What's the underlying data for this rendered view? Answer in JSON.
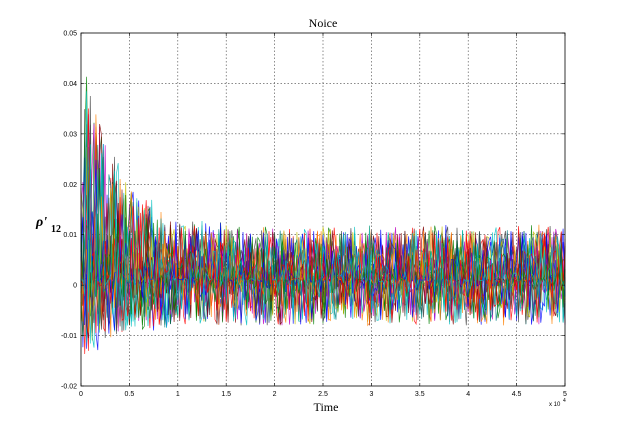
{
  "chart_data": {
    "type": "line",
    "title": "Noice",
    "xlabel": "Time",
    "ylabel": {
      "main": "ρ'",
      "sub": "12"
    },
    "x_exponent_label": "x 10",
    "x_exponent_power": "4",
    "xlim": [
      0,
      5
    ],
    "ylim": [
      -0.02,
      0.05
    ],
    "x_ticks": [
      0,
      0.5,
      1,
      1.5,
      2,
      2.5,
      3,
      3.5,
      4,
      4.5,
      5
    ],
    "x_tick_labels": [
      "0",
      "0.5",
      "1",
      "1.5",
      "2",
      "2.5",
      "3",
      "3.5",
      "4",
      "4.5",
      "5"
    ],
    "y_ticks": [
      -0.02,
      -0.01,
      0,
      0.01,
      0.02,
      0.03,
      0.04,
      0.05
    ],
    "y_tick_labels": [
      "-0.02",
      "-0.01",
      "0",
      "0.01",
      "0.02",
      "0.03",
      "0.04",
      "0.05"
    ],
    "grid": true,
    "series_colors": [
      "#0000ff",
      "#008000",
      "#ff0000",
      "#00bfbf",
      "#bf00bf",
      "#bfbf00",
      "#404040",
      "#800000",
      "#008080",
      "#ff8000"
    ],
    "envelope": {
      "description_points_x": [
        0,
        0.05,
        0.1,
        0.2,
        0.3,
        0.5,
        0.8,
        1,
        2,
        3,
        4,
        5
      ],
      "upper": [
        0.025,
        0.043,
        0.042,
        0.035,
        0.028,
        0.02,
        0.016,
        0.013,
        0.012,
        0.012,
        0.012,
        0.012
      ],
      "lower": [
        -0.012,
        -0.017,
        -0.016,
        -0.014,
        -0.012,
        -0.011,
        -0.01,
        -0.009,
        -0.009,
        -0.009,
        -0.009,
        -0.009
      ]
    }
  }
}
